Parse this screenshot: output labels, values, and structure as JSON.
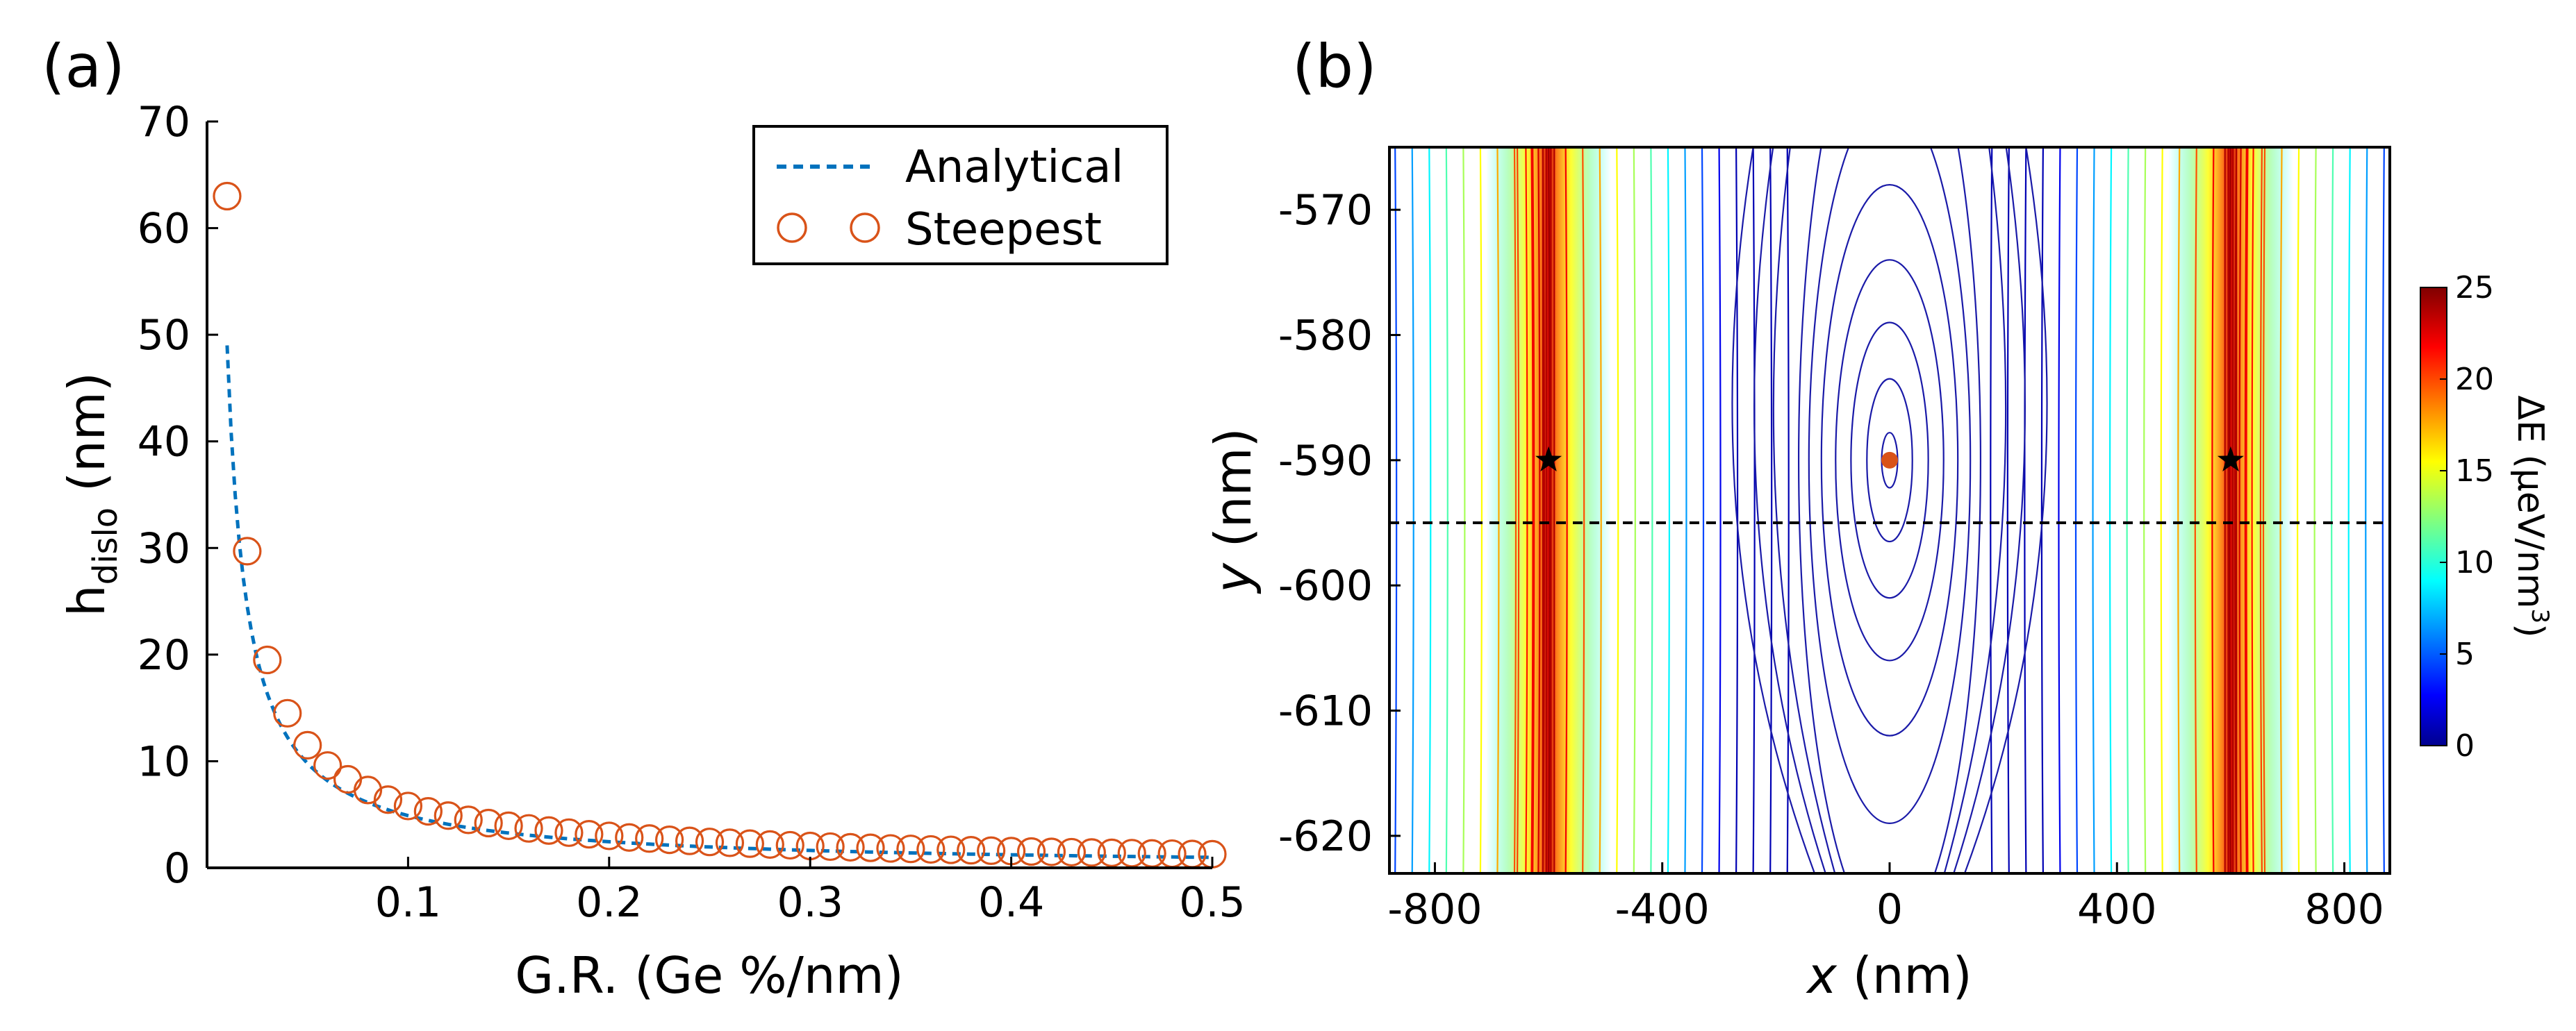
{
  "figure": {
    "panel_a_label": "(a)",
    "panel_b_label": "(b)"
  },
  "chart_data": [
    {
      "type": "scatter",
      "panel": "(a)",
      "xlabel": "G.R. (Ge %/nm)",
      "ylabel": "h",
      "ylabel_sub": "dislo",
      "ylabel_unit": " (nm)",
      "xlim": [
        0,
        0.5
      ],
      "ylim": [
        0,
        70
      ],
      "xticks": [
        0.1,
        0.2,
        0.3,
        0.4,
        0.5
      ],
      "xtick_labels": [
        "0.1",
        "0.2",
        "0.3",
        "0.4",
        "0.5"
      ],
      "yticks": [
        0,
        10,
        20,
        30,
        40,
        50,
        60,
        70
      ],
      "ytick_labels": [
        "0",
        "10",
        "20",
        "30",
        "40",
        "50",
        "60",
        "70"
      ],
      "legend_position": "top-right",
      "series": [
        {
          "name": "Analytical",
          "style": "dashed-line",
          "color": "#0072BD",
          "x_start": 0.01,
          "x_end": 0.5,
          "x_step": 0.002,
          "formula": "y = 0.49 / x"
        },
        {
          "name": "Steepest",
          "style": "open-circle",
          "color": "#D95319",
          "x": [
            0.01,
            0.02,
            0.03,
            0.04,
            0.05,
            0.06,
            0.07,
            0.08,
            0.09,
            0.1,
            0.11,
            0.12,
            0.13,
            0.14,
            0.15,
            0.16,
            0.17,
            0.18,
            0.19,
            0.2,
            0.21,
            0.22,
            0.23,
            0.24,
            0.25,
            0.26,
            0.27,
            0.28,
            0.29,
            0.3,
            0.31,
            0.32,
            0.33,
            0.34,
            0.35,
            0.36,
            0.37,
            0.38,
            0.39,
            0.4,
            0.41,
            0.42,
            0.43,
            0.44,
            0.45,
            0.46,
            0.47,
            0.48,
            0.49,
            0.5
          ],
          "y": [
            63,
            29.7,
            19.5,
            14.5,
            11.5,
            9.6,
            8.3,
            7.3,
            6.4,
            5.8,
            5.3,
            4.9,
            4.5,
            4.2,
            3.95,
            3.7,
            3.5,
            3.3,
            3.15,
            3.0,
            2.85,
            2.75,
            2.63,
            2.53,
            2.43,
            2.35,
            2.27,
            2.19,
            2.12,
            2.05,
            1.99,
            1.93,
            1.88,
            1.82,
            1.78,
            1.73,
            1.69,
            1.65,
            1.61,
            1.57,
            1.53,
            1.5,
            1.47,
            1.44,
            1.41,
            1.38,
            1.35,
            1.33,
            1.3,
            1.28
          ]
        }
      ]
    },
    {
      "type": "heatmap",
      "subtype": "contour",
      "panel": "(b)",
      "xlabel_italic": "x",
      "xlabel_unit": " (nm)",
      "ylabel_italic": "y",
      "ylabel_unit": " (nm)",
      "xlim": [
        -880,
        880
      ],
      "ylim": [
        -623,
        -565
      ],
      "xticks": [
        -800,
        -400,
        0,
        400,
        800
      ],
      "xtick_labels": [
        "-800",
        "-400",
        "0",
        "400",
        "800"
      ],
      "yticks": [
        -570,
        -580,
        -590,
        -600,
        -610,
        -620
      ],
      "ytick_labels": [
        "-570",
        "-580",
        "-590",
        "-600",
        "-610",
        "-620"
      ],
      "dislocations_x": [
        -600,
        600
      ],
      "star_points": [
        {
          "x": -600,
          "y": -590
        },
        {
          "x": 600,
          "y": -590
        }
      ],
      "center_point": {
        "x": 0,
        "y": -590,
        "color": "#D95319"
      },
      "dashed_line_y": -595,
      "center_contours": [
        {
          "a": 14,
          "b": 2.2
        },
        {
          "a": 40,
          "b": 6.5
        },
        {
          "a": 68,
          "b": 11
        },
        {
          "a": 95,
          "b": 16
        },
        {
          "a": 120,
          "b": 22
        },
        {
          "a": 142,
          "b": 29
        },
        {
          "a": 160,
          "b": 38
        }
      ],
      "colorbar": {
        "label": "ΔE (μeV/nm",
        "label_sup": "3",
        "label_end": ")",
        "min": 0,
        "max": 25,
        "ticks": [
          0,
          5,
          10,
          15,
          20,
          25
        ],
        "tick_labels": [
          "0",
          "5",
          "10",
          "15",
          "20",
          "25"
        ],
        "colormap": "jet"
      }
    }
  ]
}
